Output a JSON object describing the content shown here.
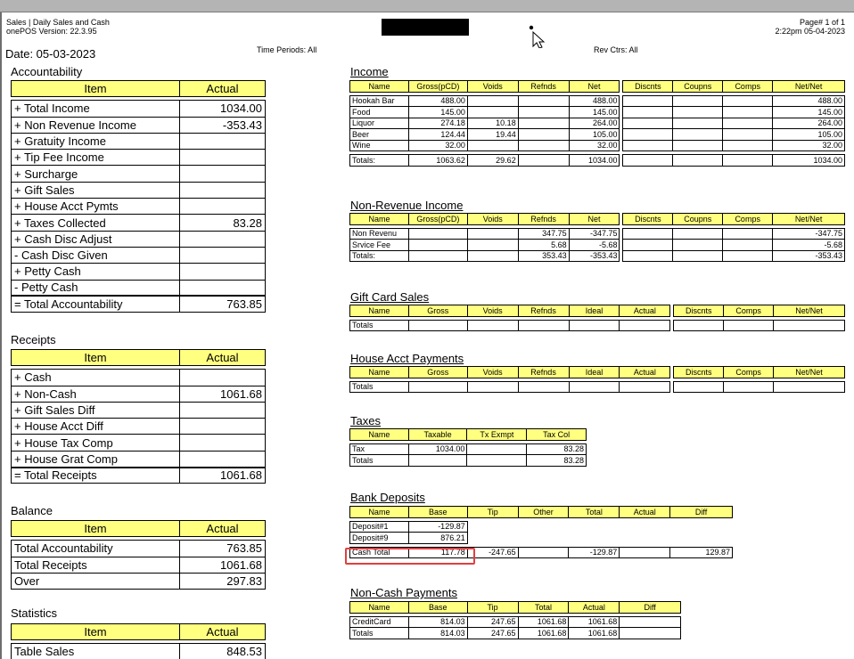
{
  "header": {
    "report_title": "Sales | Daily Sales and Cash",
    "version": "onePOS Version: 22.3.95",
    "page_number": "Page# 1 of 1",
    "printed_at": "2:22pm 05-04-2023",
    "date": "Date: 05-03-2023",
    "time_periods": "Time Periods: All",
    "rev_ctrs": "Rev Ctrs: All"
  },
  "accountability": {
    "title": "Accountability",
    "col_item": "Item",
    "col_actual": "Actual",
    "rows": [
      {
        "item": "+ Total Income",
        "actual": "1034.00"
      },
      {
        "item": "+ Non Revenue Income",
        "actual": "-353.43"
      },
      {
        "item": "+ Gratuity Income",
        "actual": ""
      },
      {
        "item": "+ Tip Fee Income",
        "actual": ""
      },
      {
        "item": "+ Surcharge",
        "actual": ""
      },
      {
        "item": "+ Gift Sales",
        "actual": ""
      },
      {
        "item": "+ House Acct Pymts",
        "actual": ""
      },
      {
        "item": "+ Taxes Collected",
        "actual": "83.28"
      },
      {
        "item": "+ Cash Disc Adjust",
        "actual": ""
      },
      {
        "item": "- Cash Disc Given",
        "actual": ""
      },
      {
        "item": "+ Petty Cash",
        "actual": ""
      },
      {
        "item": "- Petty Cash",
        "actual": ""
      }
    ],
    "total": {
      "item": "= Total Accountability",
      "actual": "763.85"
    }
  },
  "receipts": {
    "title": "Receipts",
    "col_item": "Item",
    "col_actual": "Actual",
    "rows": [
      {
        "item": "+ Cash",
        "actual": ""
      },
      {
        "item": "+ Non-Cash",
        "actual": "1061.68"
      },
      {
        "item": "+ Gift Sales Diff",
        "actual": ""
      },
      {
        "item": "+ House Acct Diff",
        "actual": ""
      },
      {
        "item": "+ House Tax Comp",
        "actual": ""
      },
      {
        "item": "+ House Grat Comp",
        "actual": ""
      }
    ],
    "total": {
      "item": "= Total Receipts",
      "actual": "1061.68"
    }
  },
  "balance": {
    "title": "Balance",
    "col_item": "Item",
    "col_actual": "Actual",
    "rows": [
      {
        "item": "Total Accountability",
        "actual": "763.85"
      },
      {
        "item": "Total Receipts",
        "actual": "1061.68"
      },
      {
        "item": "Over",
        "actual": "297.83"
      }
    ]
  },
  "statistics": {
    "title": "Statistics",
    "col_item": "Item",
    "col_actual": "Actual",
    "rows": [
      {
        "item": "Table Sales",
        "actual": "848.53"
      }
    ]
  },
  "income": {
    "title": "Income",
    "cols": [
      "Name",
      "Gross(pCD)",
      "Voids",
      "Refnds",
      "Net",
      "Discnts",
      "Coupns",
      "Comps",
      "Net/Net"
    ],
    "rows": [
      [
        "Hookah Bar",
        "488.00",
        "",
        "",
        "488.00",
        "",
        "",
        "",
        "488.00"
      ],
      [
        "Food",
        "145.00",
        "",
        "",
        "145.00",
        "",
        "",
        "",
        "145.00"
      ],
      [
        "Liquor",
        "274.18",
        "10.18",
        "",
        "264.00",
        "",
        "",
        "",
        "264.00"
      ],
      [
        "Beer",
        "124.44",
        "19.44",
        "",
        "105.00",
        "",
        "",
        "",
        "105.00"
      ],
      [
        "Wine",
        "32.00",
        "",
        "",
        "32.00",
        "",
        "",
        "",
        "32.00"
      ]
    ],
    "totals": [
      "Totals:",
      "1063.62",
      "29.62",
      "",
      "1034.00",
      "",
      "",
      "",
      "1034.00"
    ]
  },
  "non_revenue": {
    "title": "Non-Revenue Income",
    "cols": [
      "Name",
      "Gross(pCD)",
      "Voids",
      "Refnds",
      "Net",
      "Discnts",
      "Coupns",
      "Comps",
      "Net/Net"
    ],
    "rows": [
      [
        "Non Revenu",
        "",
        "",
        "347.75",
        "-347.75",
        "",
        "",
        "",
        "-347.75"
      ],
      [
        "Srvice Fee",
        "",
        "",
        "5.68",
        "-5.68",
        "",
        "",
        "",
        "-5.68"
      ]
    ],
    "totals": [
      "Totals:",
      "",
      "",
      "353.43",
      "-353.43",
      "",
      "",
      "",
      "-353.43"
    ]
  },
  "gift_card": {
    "title": "Gift Card Sales",
    "cols": [
      "Name",
      "Gross",
      "Voids",
      "Refnds",
      "Ideal",
      "Actual",
      "Discnts",
      "Comps",
      "Net/Net"
    ],
    "totals": [
      "Totals",
      "",
      "",
      "",
      "",
      "",
      "",
      "",
      ""
    ]
  },
  "house_acct": {
    "title": "House Acct Payments",
    "cols": [
      "Name",
      "Gross",
      "Voids",
      "Refnds",
      "Ideal",
      "Actual",
      "Discnts",
      "Comps",
      "Net/Net"
    ],
    "totals": [
      "Totals",
      "",
      "",
      "",
      "",
      "",
      "",
      "",
      ""
    ]
  },
  "taxes": {
    "title": "Taxes",
    "cols": [
      "Name",
      "Taxable",
      "Tx Exmpt",
      "Tax Col"
    ],
    "rows": [
      [
        "Tax",
        "1034.00",
        "",
        "83.28"
      ]
    ],
    "totals": [
      "Totals",
      "",
      "",
      "83.28"
    ]
  },
  "bank_deposits": {
    "title": "Bank Deposits",
    "cols": [
      "Name",
      "Base",
      "Tip",
      "Other",
      "Total",
      "Actual",
      "Diff"
    ],
    "rows": [
      [
        "Deposit#1",
        "-129.87",
        "",
        "",
        "",
        "",
        ""
      ],
      [
        "Deposit#9",
        "876.21",
        "",
        "",
        "",
        "",
        ""
      ]
    ],
    "totals": [
      "Cash Total",
      "117.78",
      "-247.65",
      "",
      "-129.87",
      "",
      "129.87"
    ]
  },
  "non_cash": {
    "title": "Non-Cash Payments",
    "cols": [
      "Name",
      "Base",
      "Tip",
      "Total",
      "Actual",
      "Diff"
    ],
    "rows": [
      [
        "CreditCard",
        "814.03",
        "247.65",
        "1061.68",
        "1061.68",
        ""
      ]
    ],
    "totals": [
      "Totals",
      "814.03",
      "247.65",
      "1061.68",
      "1061.68",
      ""
    ]
  }
}
